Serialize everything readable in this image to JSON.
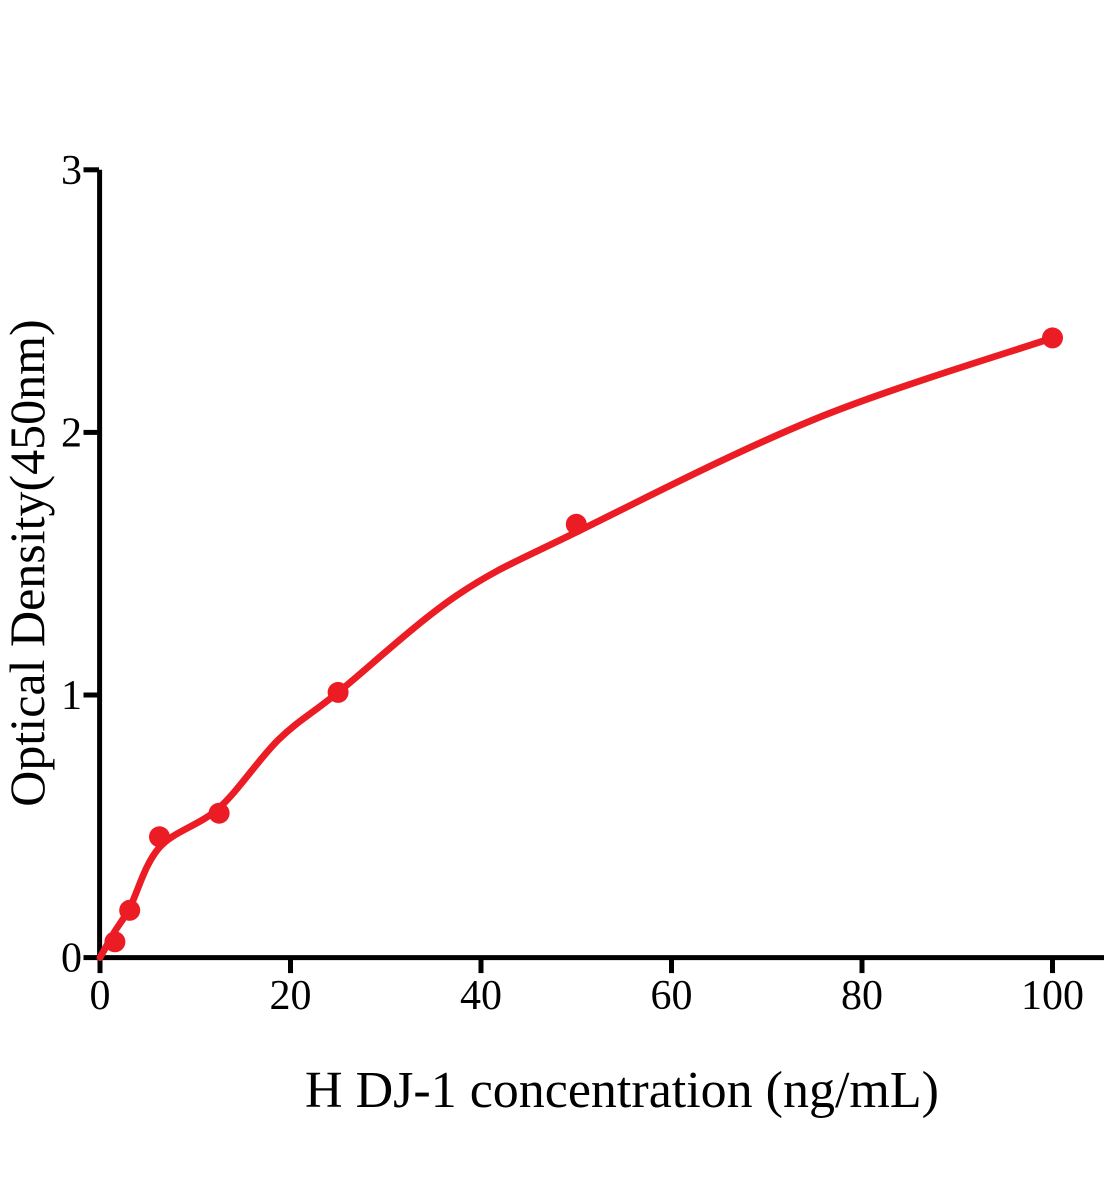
{
  "figure": {
    "background": "#ffffff",
    "axis_color": "#000000",
    "accent_red": "#EC1C24"
  },
  "chart_data": {
    "type": "scatter",
    "title": "",
    "xlabel": "H DJ-1 concentration (ng/mL)",
    "ylabel": "Optical Density(450nm)",
    "xlim": [
      0,
      105.4
    ],
    "ylim": [
      0,
      3
    ],
    "x_ticks": [
      0,
      20,
      40,
      60,
      80,
      100
    ],
    "y_ticks": [
      0,
      1,
      2,
      3
    ],
    "grid": false,
    "legend": "none",
    "series": [
      {
        "name": "standard-points",
        "style": "scatter",
        "color": "#EC1C24",
        "marker": "circle",
        "x": [
          1.56,
          3.12,
          6.25,
          12.5,
          25,
          50,
          100
        ],
        "y": [
          0.06,
          0.18,
          0.46,
          0.55,
          1.01,
          1.65,
          2.36
        ]
      },
      {
        "name": "fitted-curve",
        "style": "line",
        "color": "#EC1C24",
        "x": [
          0,
          1.56,
          3.12,
          6.25,
          12.5,
          18.75,
          25,
          37.5,
          50,
          75,
          100
        ],
        "y": [
          0.0,
          0.1,
          0.19,
          0.42,
          0.57,
          0.83,
          1.01,
          1.38,
          1.62,
          2.05,
          2.36
        ]
      }
    ]
  }
}
